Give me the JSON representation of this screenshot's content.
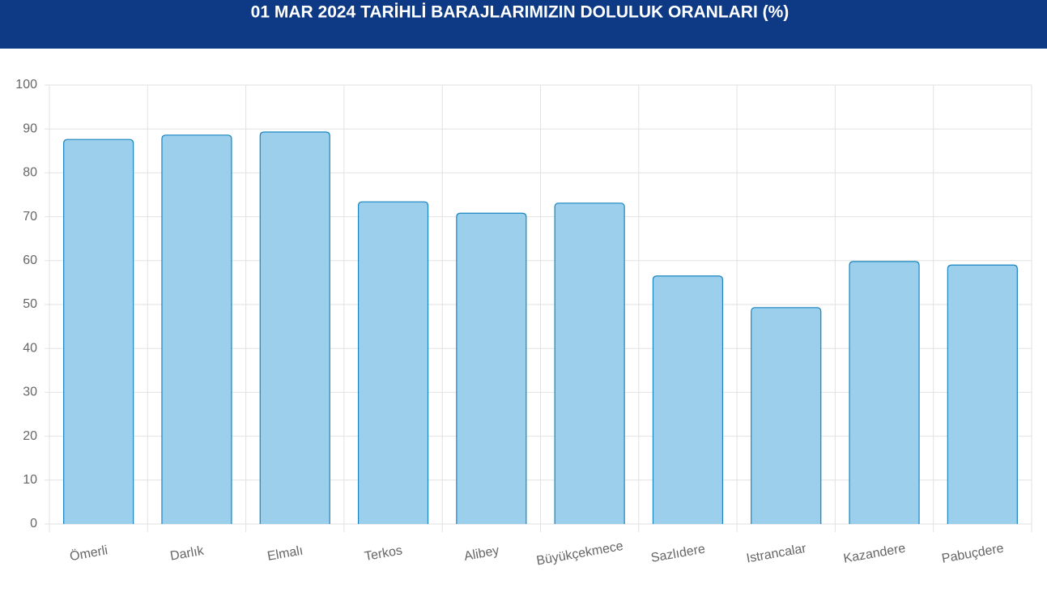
{
  "chart_data": {
    "type": "bar",
    "title": "01 MAR 2024 TARİHLİ BARAJLARIMIZIN DOLULUK ORANLARI (%)",
    "categories": [
      "Ömerli",
      "Darlık",
      "Elmalı",
      "Terkos",
      "Alibey",
      "Büyükçekmece",
      "Sazlıdere",
      "Istrancalar",
      "Kazandere",
      "Pabuçdere"
    ],
    "values": [
      87.6,
      88.6,
      89.3,
      73.4,
      70.8,
      73.1,
      56.5,
      49.3,
      59.8,
      59.0
    ],
    "color": "#9bcfec",
    "border_color": "#1a85c0",
    "ylim": [
      0,
      100
    ],
    "yticks": [
      0,
      10,
      20,
      30,
      40,
      50,
      60,
      70,
      80,
      90,
      100
    ],
    "grid": true
  }
}
